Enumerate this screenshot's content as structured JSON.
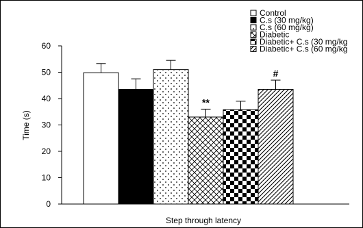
{
  "chart_data": {
    "type": "bar",
    "title": "",
    "xlabel": "Step through latency",
    "ylabel": "Time (s)",
    "ylim": [
      0,
      60
    ],
    "yticks": [
      "0",
      "10",
      "20",
      "30",
      "40",
      "50",
      "60"
    ],
    "grid": false,
    "legend_position": "top-right",
    "series": [
      {
        "name": "Control",
        "value": 49.8,
        "error": 3.5,
        "pattern": "white",
        "annotation": ""
      },
      {
        "name": "C.s (30 mg/kg)",
        "value": 43.5,
        "error": 4.0,
        "pattern": "black",
        "annotation": ""
      },
      {
        "name": "C.s (60 mg/kg)",
        "value": 51.0,
        "error": 3.5,
        "pattern": "dots",
        "annotation": ""
      },
      {
        "name": "Diabetic",
        "value": 33.0,
        "error": 3.0,
        "pattern": "crosshatch",
        "annotation": "**"
      },
      {
        "name": "Diabetic+ C.s (30 mg/kg",
        "value": 35.8,
        "error": 3.2,
        "pattern": "checker",
        "annotation": ""
      },
      {
        "name": "Diabetic+ C.s (60 mg/kg",
        "value": 43.5,
        "error": 3.5,
        "pattern": "diagonal",
        "annotation": "#"
      }
    ]
  }
}
